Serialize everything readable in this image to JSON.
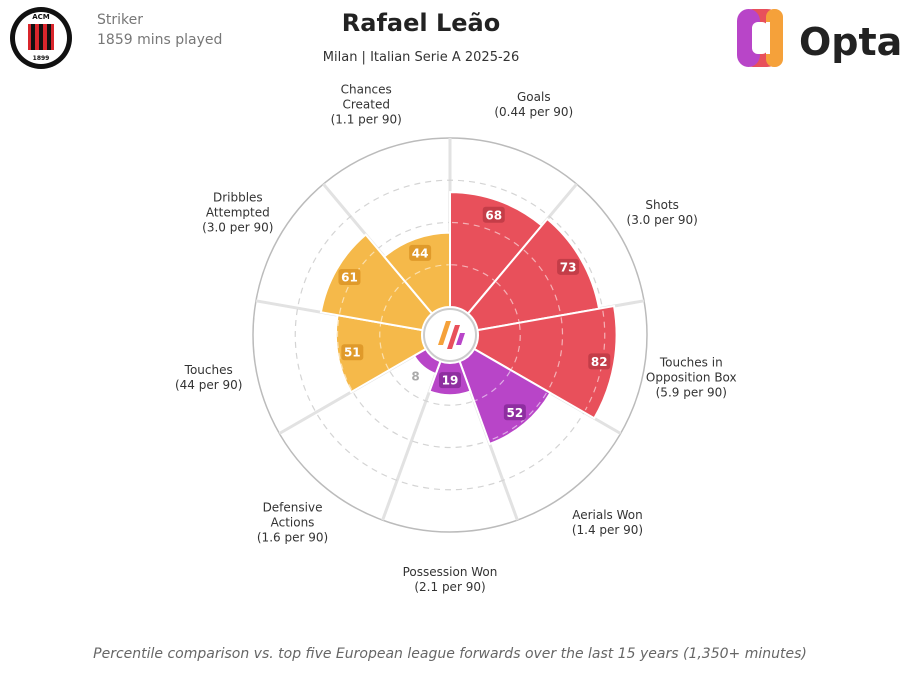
{
  "chart_data": {
    "type": "pizza",
    "title": "Rafael Leão",
    "subtitle": "Milan | Italian Serie A 2025-26",
    "position": "Striker",
    "minutes": "1859 mins played",
    "badge_top": "ACM",
    "badge_bottom": "1899",
    "brand": "Opta",
    "footnote": "Percentile comparison vs. top five European league forwards over the last 15 years (1,350+ minutes)",
    "categories": [
      "Goals",
      "Shots",
      "Touches in Opposition Box",
      "Aerials Won",
      "Possession Won",
      "Defensive Actions",
      "Touches",
      "Dribbles Attempted",
      "Chances Created"
    ],
    "per90_labels": [
      "(0.44 per 90)",
      "(3.0 per 90)",
      "(5.9 per 90)",
      "(1.4 per 90)",
      "(2.1 per 90)",
      "(1.6 per 90)",
      "(44 per 90)",
      "(3.0 per 90)",
      "(1.1 per 90)"
    ],
    "values": [
      68,
      73,
      82,
      52,
      19,
      8,
      51,
      61,
      44
    ],
    "colors": [
      "#e8505b",
      "#e8505b",
      "#e8505b",
      "#b845c8",
      "#b845c8",
      "#b845c8",
      "#f5b94a",
      "#f5b94a",
      "#f5b94a"
    ],
    "label_colors": [
      "#c43d48",
      "#c43d48",
      "#c43d48",
      "#8e2ea0",
      "#8e2ea0",
      "#8e2ea0",
      "#e09a2a",
      "#e09a2a",
      "#e09a2a"
    ],
    "ylim": [
      0,
      100
    ],
    "yticks": [
      25,
      50,
      75
    ],
    "grid": true
  }
}
